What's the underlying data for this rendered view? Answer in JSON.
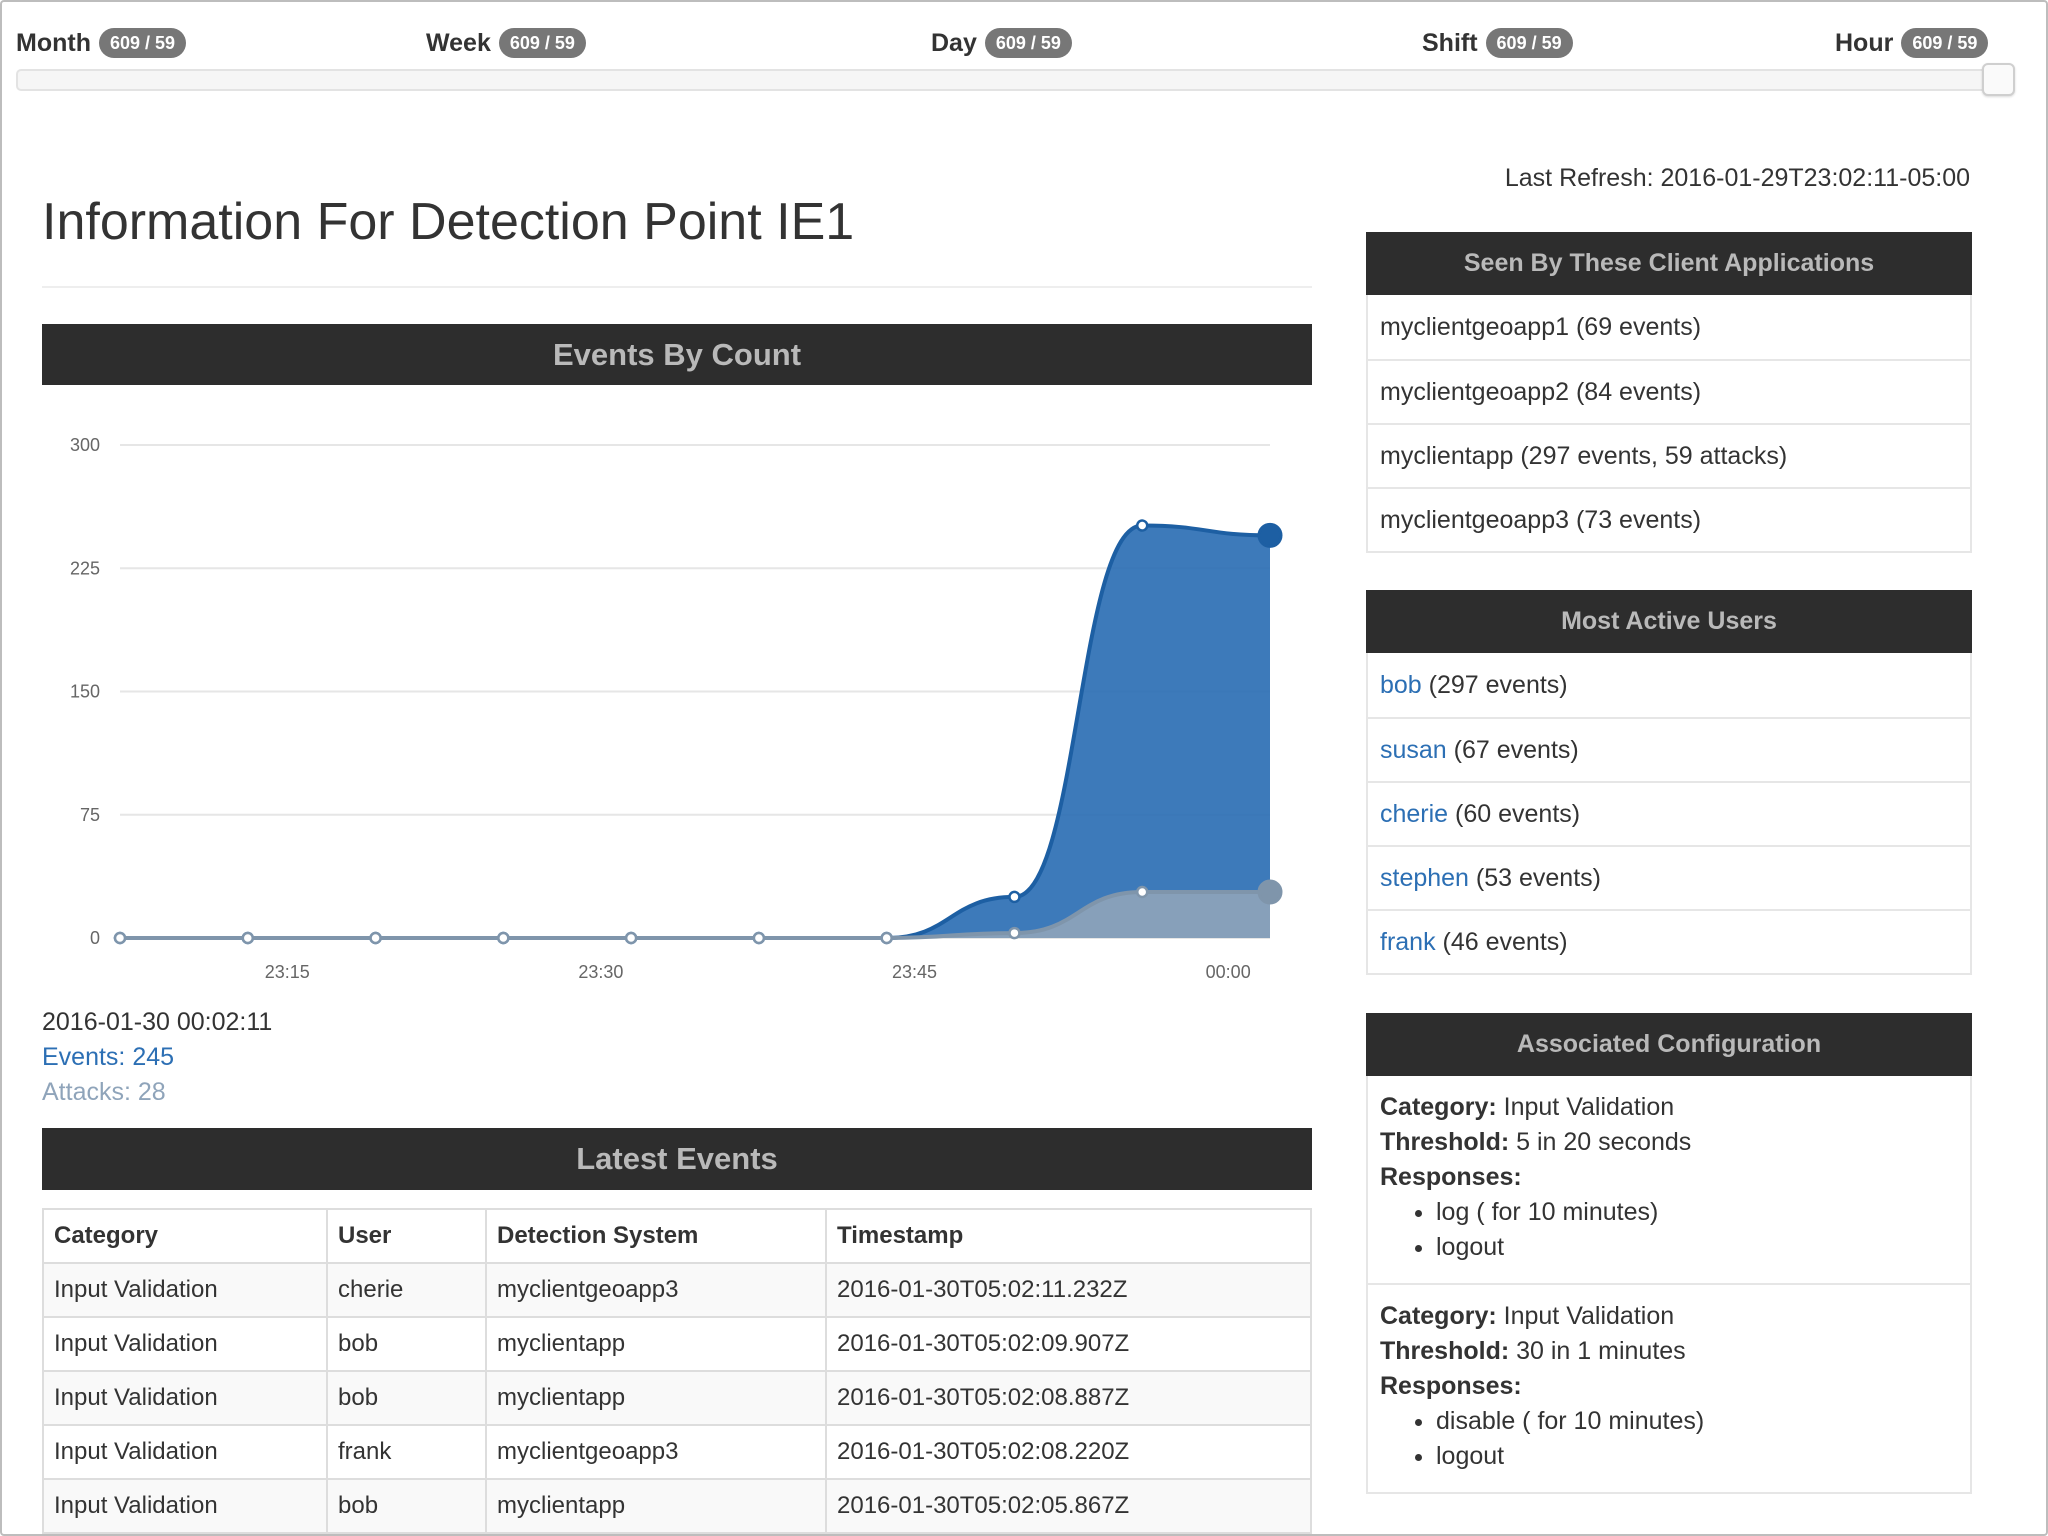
{
  "range_selector": {
    "options": [
      {
        "label": "Month",
        "badge": "609 / 59"
      },
      {
        "label": "Week",
        "badge": "609 / 59"
      },
      {
        "label": "Day",
        "badge": "609 / 59"
      },
      {
        "label": "Shift",
        "badge": "609 / 59"
      },
      {
        "label": "Hour",
        "badge": "609 / 59"
      }
    ],
    "selected": "Hour"
  },
  "last_refresh": "Last Refresh: 2016-01-29T23:02:11-05:00",
  "page_title": "Information For Detection Point IE1",
  "chart_panel": {
    "title": "Events By Count",
    "tooltip": {
      "time": "2016-01-30 00:02:11",
      "events": "Events: 245",
      "attacks": "Attacks: 28"
    }
  },
  "chart_data": {
    "type": "area",
    "x": [
      "23:07",
      "23:13",
      "23:19",
      "23:25",
      "23:31",
      "23:37",
      "23:43",
      "23:49",
      "23:55",
      "00:02"
    ],
    "x_ticks": [
      "23:15",
      "23:30",
      "23:45",
      "00:00"
    ],
    "y_ticks": [
      "0",
      "75",
      "150",
      "225",
      "300"
    ],
    "ylim": [
      0,
      300
    ],
    "grid": true,
    "series": [
      {
        "values": [
          0,
          0,
          0,
          0,
          0,
          0,
          0,
          25,
          251,
          245
        ],
        "color": "#2c6fb4"
      },
      {
        "values": [
          0,
          0,
          0,
          0,
          0,
          0,
          0,
          3,
          28,
          28
        ],
        "color": "#8fa4ba"
      }
    ]
  },
  "latest_events": {
    "title": "Latest Events",
    "columns": [
      "Category",
      "User",
      "Detection System",
      "Timestamp"
    ],
    "rows": [
      [
        "Input Validation",
        "cherie",
        "myclientgeoapp3",
        "2016-01-30T05:02:11.232Z"
      ],
      [
        "Input Validation",
        "bob",
        "myclientapp",
        "2016-01-30T05:02:09.907Z"
      ],
      [
        "Input Validation",
        "bob",
        "myclientapp",
        "2016-01-30T05:02:08.887Z"
      ],
      [
        "Input Validation",
        "frank",
        "myclientgeoapp3",
        "2016-01-30T05:02:08.220Z"
      ],
      [
        "Input Validation",
        "bob",
        "myclientapp",
        "2016-01-30T05:02:05.867Z"
      ]
    ]
  },
  "client_apps": {
    "title": "Seen By These Client Applications",
    "items": [
      "myclientgeoapp1 (69 events)",
      "myclientgeoapp2 (84 events)",
      "myclientapp (297 events, 59 attacks)",
      "myclientgeoapp3 (73 events)"
    ]
  },
  "active_users": {
    "title": "Most Active Users",
    "items": [
      {
        "name": "bob",
        "count": "(297 events)"
      },
      {
        "name": "susan",
        "count": "(67 events)"
      },
      {
        "name": "cherie",
        "count": "(60 events)"
      },
      {
        "name": "stephen",
        "count": "(53 events)"
      },
      {
        "name": "frank",
        "count": "(46 events)"
      }
    ]
  },
  "configuration": {
    "title": "Associated Configuration",
    "labels": {
      "category": "Category:",
      "threshold": "Threshold:",
      "responses": "Responses:"
    },
    "blocks": [
      {
        "category": "Input Validation",
        "threshold": "5 in 20 seconds",
        "responses": [
          "log ( for 10 minutes)",
          "logout"
        ]
      },
      {
        "category": "Input Validation",
        "threshold": "30 in 1 minutes",
        "responses": [
          "disable ( for 10 minutes)",
          "logout"
        ]
      }
    ]
  }
}
